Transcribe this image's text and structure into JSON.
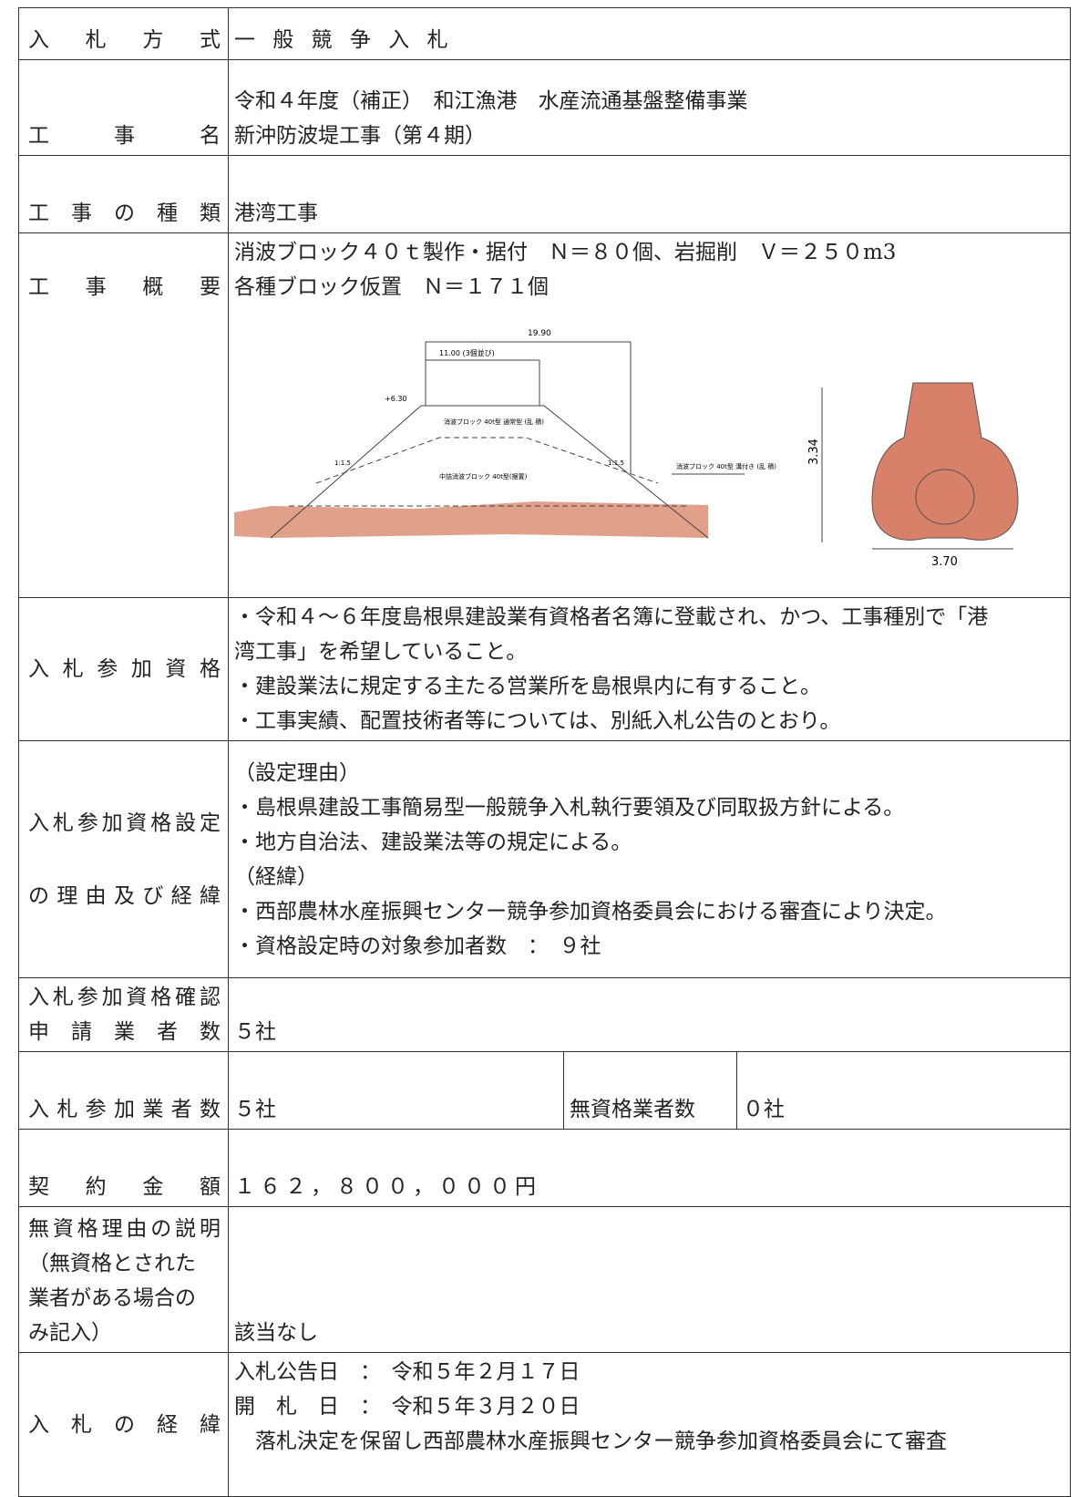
{
  "table": {
    "rows": [
      {
        "label": [
          "入札方式"
        ],
        "lines": [
          "一 般 競 争 入 札"
        ]
      },
      {
        "label": [
          "工事名"
        ],
        "lines": [
          "令和４年度（補正）　和江漁港　水産流通基盤整備事業",
          "新沖防波堤工事（第４期）"
        ]
      },
      {
        "label": [
          "工事の種類"
        ],
        "lines": [
          "港湾工事"
        ]
      },
      {
        "label": [
          "工事概要"
        ],
        "lines": [
          "消波ブロック４０ｔ製作・据付　Ｎ＝８０個、岩掘削　Ｖ＝２５０m3",
          "各種ブロック仮置　Ｎ＝１７１個"
        ]
      },
      {
        "label": [
          "入札参加資格"
        ],
        "lines": [
          "・令和４〜６年度島根県建設業有資格者名簿に登載され、かつ、工事種別で「港",
          "湾工事」を希望していること。",
          "・建設業法に規定する主たる営業所を島根県内に有すること。",
          "・工事実績、配置技術者等については、別紙入札公告のとおり。"
        ]
      },
      {
        "label": [
          "入札参加資格設定",
          "の理由及び経緯"
        ],
        "lines": [
          "（設定理由）",
          "・島根県建設工事簡易型一般競争入札執行要領及び同取扱方針による。",
          "・地方自治法、建設業法等の規定による。",
          "（経緯）",
          "・西部農林水産振興センター競争参加資格委員会における審査により決定。",
          "・資格設定時の対象参加者数　：　９社"
        ]
      },
      {
        "label": [
          "入札参加資格確認",
          "申請業者数"
        ],
        "lines": [
          "５社"
        ]
      },
      {
        "label": [
          "入札参加業者数"
        ],
        "lines": [
          "５社"
        ],
        "sub_label": "無資格業者数",
        "sub_value": "０社"
      },
      {
        "label": [
          "契約金額"
        ],
        "lines": [
          "１６２，８００，０００円"
        ]
      },
      {
        "label": [
          "無資格理由の説明",
          "（無資格とされた",
          "業者がある場合の",
          "み記入）"
        ],
        "lines": [
          "該当なし"
        ]
      },
      {
        "label": [
          "入札の経緯"
        ],
        "lines": [
          "入札公告日　：　令和５年２月１７日",
          "開　札　日　：　令和５年３月２０日",
          "　落札決定を保留し西部農林水産振興センター競争参加資格委員会にて審査"
        ]
      }
    ]
  },
  "drawing": {
    "labels": [
      "19.90",
      "11.00 (3個並び)",
      "+6.30",
      "消波ブロック 40t型 通常型 (乱 積)",
      "中詰消波ブロック 40t型(据置)",
      "1:1.5",
      "1:1.5",
      "消波ブロック 40t型 溝付き (乱 積)",
      "3.34",
      "3.70"
    ]
  }
}
